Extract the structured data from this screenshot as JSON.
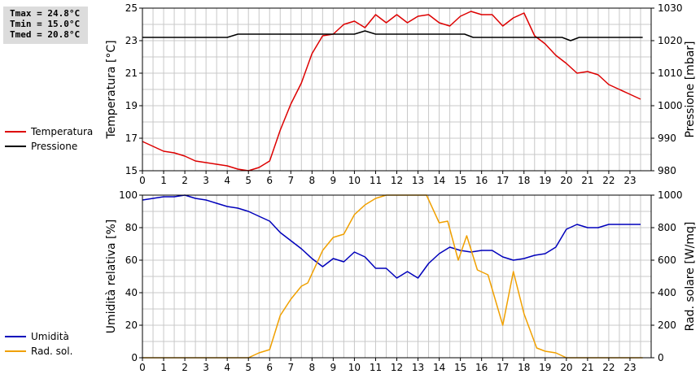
{
  "stats": {
    "tmax": "Tmax = 24.8°C",
    "tmin": "Tmin = 15.0°C",
    "tmed": "Tmed = 20.8°C"
  },
  "colors": {
    "temperature": "#dd0000",
    "pressure": "#000000",
    "humidity": "#0000bb",
    "solar": "#f0a000",
    "grid": "#c8c8c8"
  },
  "chart_data": [
    {
      "type": "line",
      "ylabel": "Temperatura [°C]",
      "y2label": "Pressione [mbar]",
      "xlim": [
        0,
        24
      ],
      "ylim": [
        15,
        25
      ],
      "y2lim": [
        980,
        1030
      ],
      "xticks": [
        "0",
        "1",
        "2",
        "3",
        "4",
        "5",
        "6",
        "7",
        "8",
        "9",
        "10",
        "11",
        "12",
        "13",
        "14",
        "15",
        "16",
        "17",
        "18",
        "19",
        "20",
        "21",
        "22",
        "23"
      ],
      "yticks": [
        "15",
        "17",
        "19",
        "21",
        "23",
        "25"
      ],
      "y2ticks": [
        "980",
        "990",
        "1000",
        "1010",
        "1020",
        "1030"
      ],
      "grid": true,
      "legend": "left",
      "series": [
        {
          "name": "Temperatura",
          "axis": "left",
          "x": [
            0,
            0.5,
            1,
            1.5,
            2,
            2.5,
            3,
            3.5,
            4,
            4.5,
            5,
            5.5,
            6,
            6.5,
            7,
            7.5,
            8,
            8.5,
            9,
            9.5,
            10,
            10.5,
            11,
            11.5,
            12,
            12.5,
            13,
            13.5,
            14,
            14.5,
            15,
            15.5,
            16,
            16.5,
            17,
            17.5,
            18,
            18.5,
            19,
            19.5,
            20,
            20.5,
            21,
            21.5,
            22,
            22.5,
            23,
            23.5
          ],
          "values": [
            16.8,
            16.5,
            16.2,
            16.1,
            15.9,
            15.6,
            15.5,
            15.4,
            15.3,
            15.1,
            15.0,
            15.2,
            15.6,
            17.5,
            19.1,
            20.4,
            22.2,
            23.3,
            23.4,
            24.0,
            24.2,
            23.8,
            24.6,
            24.1,
            24.6,
            24.1,
            24.5,
            24.6,
            24.1,
            23.9,
            24.5,
            24.8,
            24.6,
            24.6,
            23.9,
            24.4,
            24.7,
            23.3,
            22.8,
            22.1,
            21.6,
            21.0,
            21.1,
            20.9,
            20.3,
            20.0,
            19.7,
            19.4
          ]
        },
        {
          "name": "Pressione",
          "axis": "right",
          "x": [
            0,
            4,
            4.5,
            10,
            10.5,
            11,
            15.2,
            15.6,
            19.8,
            20.2,
            20.6,
            23.6
          ],
          "values": [
            1021,
            1021,
            1022,
            1022,
            1023,
            1022,
            1022,
            1021,
            1021,
            1020,
            1021,
            1021
          ]
        }
      ]
    },
    {
      "type": "line",
      "ylabel": "Umidità relativa [%]",
      "y2label": "Rad. solare [W/mq]",
      "xlim": [
        0,
        24
      ],
      "ylim": [
        0,
        100
      ],
      "y2lim": [
        0,
        1000
      ],
      "xticks": [
        "0",
        "1",
        "2",
        "3",
        "4",
        "5",
        "6",
        "7",
        "8",
        "9",
        "10",
        "11",
        "12",
        "13",
        "14",
        "15",
        "16",
        "17",
        "18",
        "19",
        "20",
        "21",
        "22",
        "23"
      ],
      "yticks": [
        "0",
        "20",
        "40",
        "60",
        "80",
        "100"
      ],
      "y2ticks": [
        "0",
        "200",
        "400",
        "600",
        "800",
        "1000"
      ],
      "grid": true,
      "legend": "left",
      "series": [
        {
          "name": "Umidità",
          "axis": "left",
          "x": [
            0,
            0.5,
            1,
            1.5,
            2,
            2.5,
            3,
            3.5,
            4,
            4.5,
            5,
            5.5,
            6,
            6.5,
            7,
            7.5,
            8,
            8.5,
            9,
            9.5,
            10,
            10.5,
            11,
            11.5,
            12,
            12.5,
            13,
            13.5,
            14,
            14.5,
            15,
            15.5,
            16,
            16.5,
            17,
            17.5,
            18,
            18.5,
            19,
            19.5,
            20,
            20.5,
            21,
            21.5,
            22,
            22.5,
            23,
            23.5
          ],
          "values": [
            97,
            98,
            99,
            99,
            100,
            98,
            97,
            95,
            93,
            92,
            90,
            87,
            84,
            77,
            72,
            67,
            61,
            56,
            61,
            59,
            65,
            62,
            55,
            55,
            49,
            53,
            49,
            58,
            64,
            68,
            66,
            65,
            66,
            66,
            62,
            60,
            61,
            63,
            64,
            68,
            79,
            82,
            80,
            80,
            82,
            82,
            82,
            82
          ]
        },
        {
          "name": "Rad. sol.",
          "axis": "right",
          "x": [
            0,
            5,
            5.5,
            6,
            6.5,
            7,
            7.5,
            7.8,
            8.5,
            9,
            9.5,
            10,
            10.5,
            11,
            11.5,
            13.4,
            14,
            14.4,
            14.9,
            15.3,
            15.8,
            16.3,
            17,
            17.5,
            18,
            18.6,
            19,
            19.5,
            20,
            20.5,
            23.6
          ],
          "values": [
            0,
            0,
            30,
            50,
            260,
            360,
            440,
            460,
            660,
            740,
            760,
            880,
            940,
            980,
            1000,
            1000,
            830,
            840,
            600,
            750,
            540,
            510,
            200,
            530,
            270,
            60,
            40,
            30,
            0,
            0,
            0
          ]
        }
      ]
    }
  ]
}
